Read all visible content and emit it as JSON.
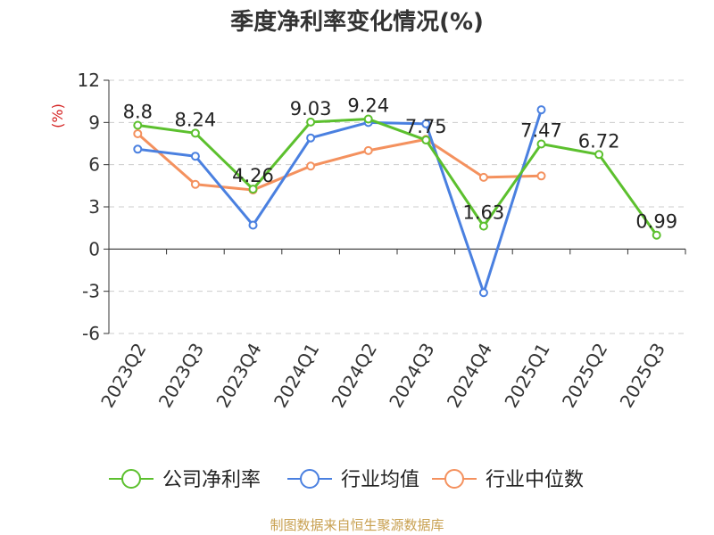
{
  "title": "季度净利率变化情况(%)",
  "source": "制图数据来自恒生聚源数据库",
  "colors": {
    "company": "#5cc02e",
    "industry_avg": "#4a80e0",
    "industry_median": "#f4915e",
    "axis": "#333333",
    "grid": "#cccccc",
    "unit_label": "#d42020"
  },
  "chart_data": {
    "type": "line",
    "title": "季度净利率变化情况(%)",
    "ylabel": "(%)",
    "xlabel": "",
    "ylim": [
      -6,
      12
    ],
    "yticks": [
      -6,
      -3,
      0,
      3,
      6,
      9,
      12
    ],
    "grid": "horizontal dashed",
    "legend_position": "bottom",
    "categories": [
      "2023Q2",
      "2023Q3",
      "2023Q4",
      "2024Q1",
      "2024Q2",
      "2024Q3",
      "2024Q4",
      "2025Q1",
      "2025Q2",
      "2025Q3"
    ],
    "series": [
      {
        "name": "公司净利率",
        "color": "#5cc02e",
        "values": [
          8.8,
          8.24,
          4.26,
          9.03,
          9.24,
          7.75,
          1.63,
          7.47,
          6.72,
          0.99
        ],
        "labels": [
          "8.8",
          "8.24",
          "4.26",
          "9.03",
          "9.24",
          "7.75",
          "1.63",
          "7.47",
          "6.72",
          "0.99"
        ]
      },
      {
        "name": "行业均值",
        "color": "#4a80e0",
        "values": [
          7.1,
          6.6,
          1.7,
          7.9,
          9.0,
          8.9,
          -3.1,
          9.9,
          null,
          null
        ]
      },
      {
        "name": "行业中位数",
        "color": "#f4915e",
        "values": [
          8.2,
          4.6,
          4.2,
          5.9,
          7.0,
          7.8,
          5.1,
          5.2,
          null,
          null
        ]
      }
    ]
  }
}
